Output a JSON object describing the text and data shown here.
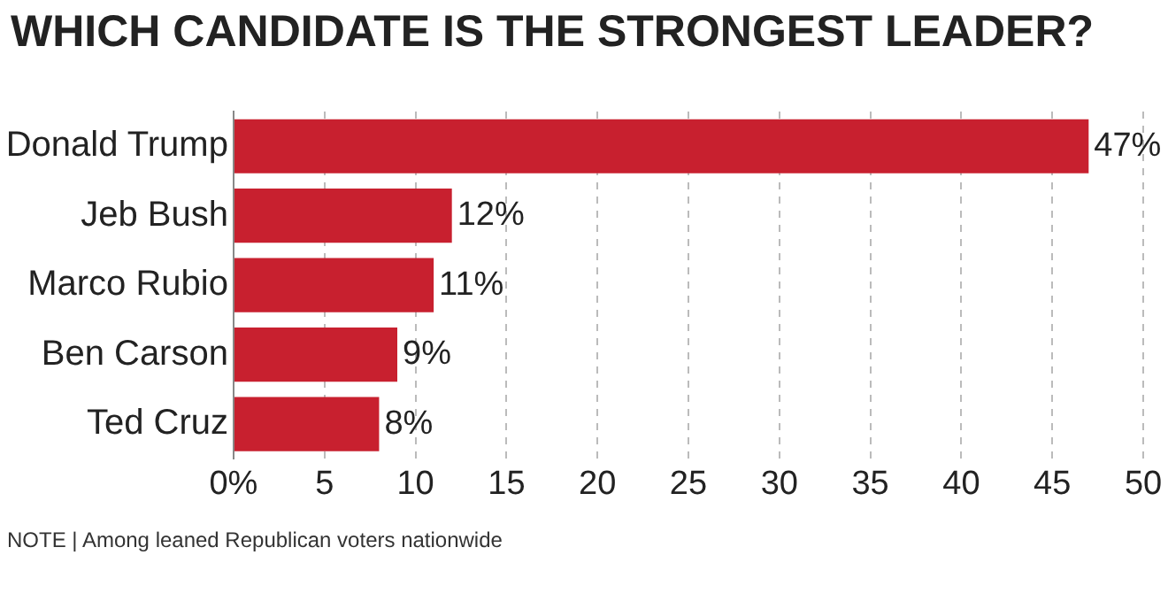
{
  "chart_data": {
    "type": "bar",
    "orientation": "horizontal",
    "title": "WHICH CANDIDATE IS THE STRONGEST LEADER?",
    "categories": [
      "Donald Trump",
      "Jeb Bush",
      "Marco Rubio",
      "Ben Carson",
      "Ted Cruz"
    ],
    "values": [
      47,
      12,
      11,
      9,
      8
    ],
    "color": "#c8202f",
    "value_labels": [
      "47%",
      "12%",
      "11%",
      "9%",
      "8%"
    ],
    "xlim": [
      0,
      50
    ],
    "xticks": [
      {
        "value": 0,
        "label": "0%"
      },
      5,
      10,
      15,
      20,
      25,
      30,
      35,
      40,
      45,
      50
    ],
    "grid": "x",
    "legend": false,
    "annotations": [
      "NOTE | Among leaned Republican voters nationwide"
    ]
  }
}
